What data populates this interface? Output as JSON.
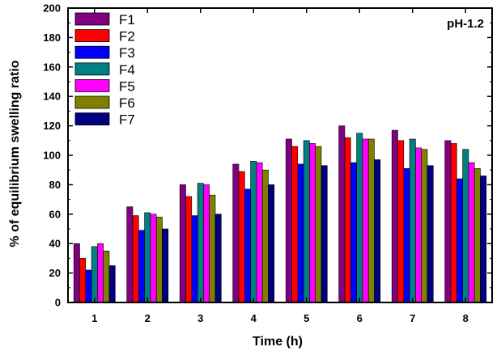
{
  "chart_data": {
    "type": "bar",
    "title": "",
    "annotation": "pH-1.2",
    "xlabel": "Time (h)",
    "ylabel": "% of equilibrium swelling ratio",
    "ylim": [
      0,
      200
    ],
    "yticks": [
      0,
      20,
      40,
      60,
      80,
      100,
      120,
      140,
      160,
      180,
      200
    ],
    "categories": [
      "1",
      "2",
      "3",
      "4",
      "5",
      "6",
      "7",
      "8"
    ],
    "legend_position": "top-left",
    "grid": false,
    "series": [
      {
        "name": "F1",
        "color": "#800080",
        "values": [
          40,
          65,
          80,
          94,
          111,
          120,
          117,
          110
        ]
      },
      {
        "name": "F2",
        "color": "#ff0000",
        "values": [
          30,
          59,
          72,
          89,
          106,
          112,
          110,
          108
        ]
      },
      {
        "name": "F3",
        "color": "#0000ff",
        "values": [
          22,
          49,
          59,
          77,
          94,
          95,
          91,
          84
        ]
      },
      {
        "name": "F4",
        "color": "#008080",
        "values": [
          38,
          61,
          81,
          96,
          110,
          115,
          111,
          104
        ]
      },
      {
        "name": "F5",
        "color": "#ff00ff",
        "values": [
          40,
          60,
          80,
          95,
          108,
          111,
          105,
          95
        ]
      },
      {
        "name": "F6",
        "color": "#808000",
        "values": [
          35,
          58,
          73,
          90,
          106,
          111,
          104,
          91
        ]
      },
      {
        "name": "F7",
        "color": "#000080",
        "values": [
          25,
          50,
          60,
          80,
          93,
          97,
          93,
          86
        ]
      }
    ]
  }
}
